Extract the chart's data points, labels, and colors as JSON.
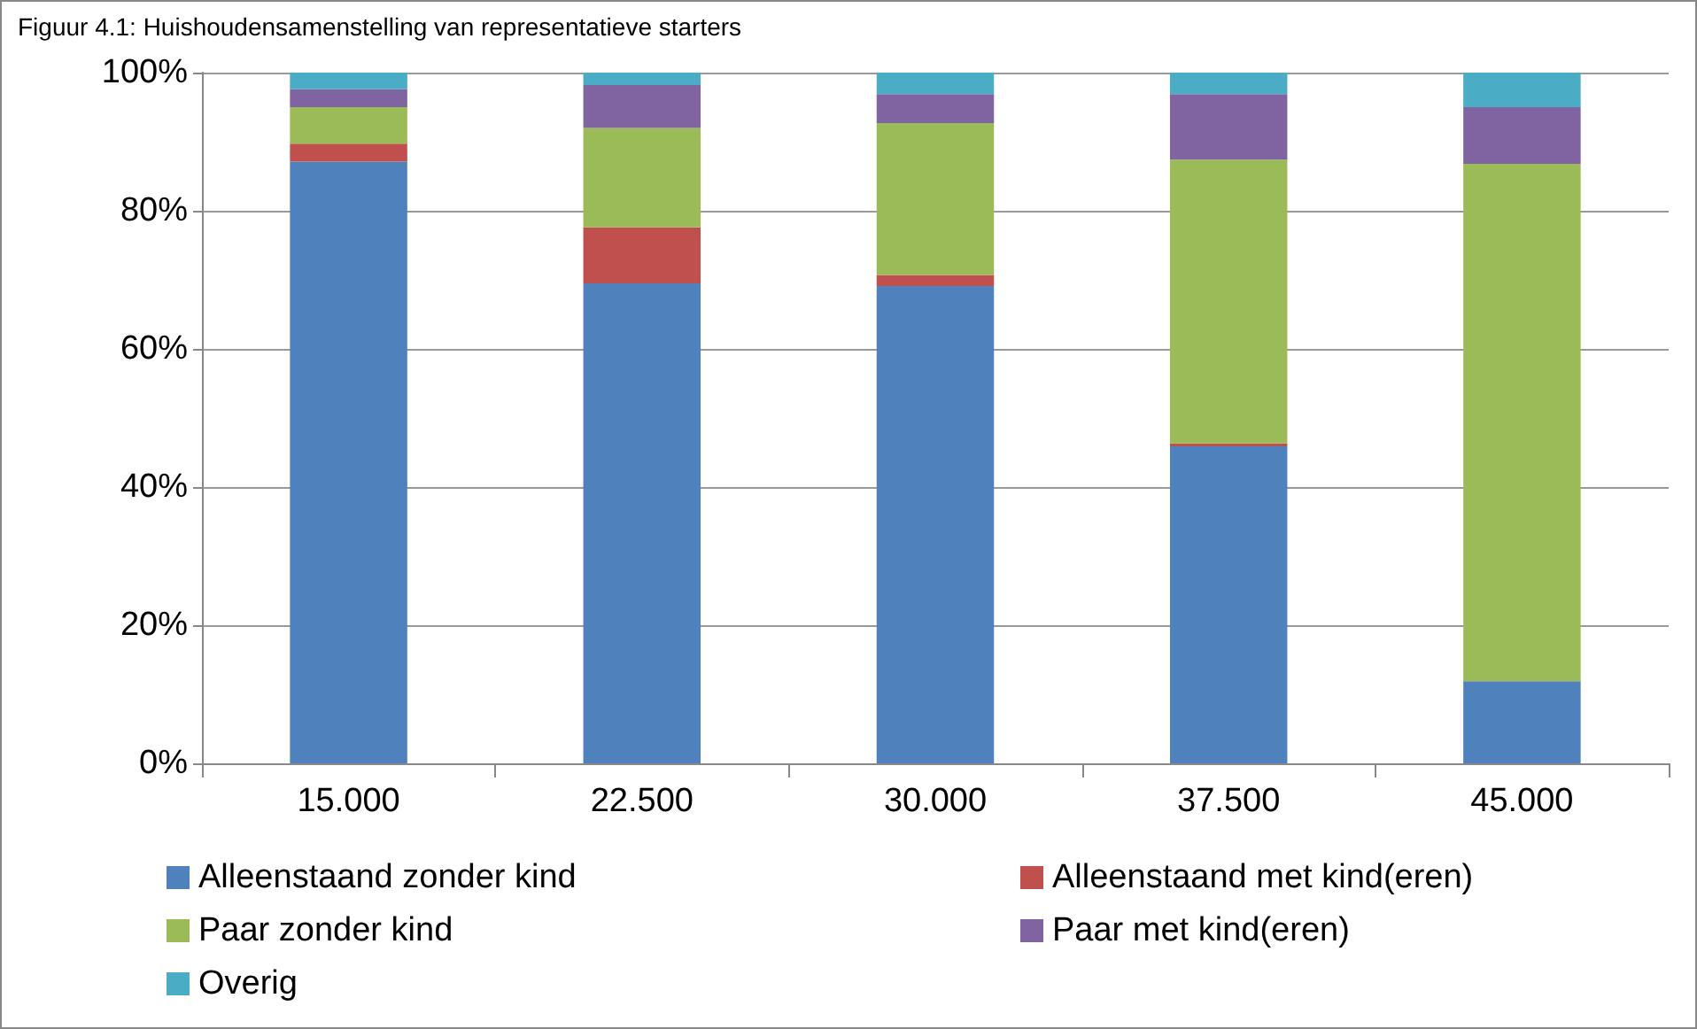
{
  "chart_data": {
    "type": "bar",
    "title": "Figuur 4.1: Huishoudensamenstelling van representatieve starters",
    "categories": [
      "15.000",
      "22.500",
      "30.000",
      "37.500",
      "45.000"
    ],
    "stacked": true,
    "series": [
      {
        "name": "Alleenstaand zonder kind",
        "color": "#4f81bd",
        "values": [
          87.1,
          69.5,
          69.1,
          45.9,
          11.9
        ]
      },
      {
        "name": "Alleenstaand met kind(eren)",
        "color": "#c0504d",
        "values": [
          2.6,
          8.1,
          1.6,
          0.4,
          0
        ]
      },
      {
        "name": "Paar zonder kind",
        "color": "#9bbb59",
        "values": [
          5.3,
          14.4,
          22.0,
          41.1,
          74.9
        ]
      },
      {
        "name": "Paar met kind(eren)",
        "color": "#8064a2",
        "values": [
          2.6,
          6.2,
          4.2,
          9.5,
          8.2
        ]
      },
      {
        "name": "Overig",
        "color": "#4bacc6",
        "values": [
          2.4,
          1.8,
          3.1,
          3.1,
          5.0
        ]
      }
    ],
    "ylim": [
      0,
      100
    ],
    "yticks": [
      {
        "value": 0,
        "label": "0%"
      },
      {
        "value": 20,
        "label": "20%"
      },
      {
        "value": 40,
        "label": "40%"
      },
      {
        "value": 60,
        "label": "60%"
      },
      {
        "value": 80,
        "label": "80%"
      },
      {
        "value": 100,
        "label": "100%"
      }
    ],
    "grid": "y",
    "legend": "bottom"
  }
}
